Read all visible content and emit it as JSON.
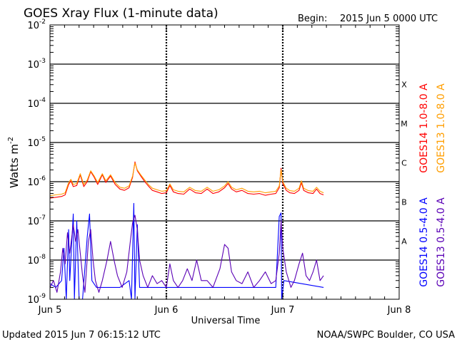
{
  "chart_data": {
    "type": "line",
    "title": "GOES Xray Flux (1-minute data)",
    "begin_label": "Begin:",
    "begin_value": "2015 Jun 5 0000 UTC",
    "ylabel_base": "Watts m",
    "ylabel_exp": "-2",
    "xlabel": "Universal Time",
    "y_scale": "log",
    "ylim": [
      1e-09,
      0.01
    ],
    "y_ticks": [
      {
        "value": 0.01,
        "base": "10",
        "exp": "-2"
      },
      {
        "value": 0.001,
        "base": "10",
        "exp": "-3"
      },
      {
        "value": 0.0001,
        "base": "10",
        "exp": "-4"
      },
      {
        "value": 1e-05,
        "base": "10",
        "exp": "-5"
      },
      {
        "value": 1e-06,
        "base": "10",
        "exp": "-6"
      },
      {
        "value": 1e-07,
        "base": "10",
        "exp": "-7"
      },
      {
        "value": 1e-08,
        "base": "10",
        "exp": "-8"
      },
      {
        "value": 1e-09,
        "base": "10",
        "exp": "-9"
      }
    ],
    "xlim_days": [
      0,
      3
    ],
    "x_ticks": [
      {
        "day": 0,
        "label": "Jun 5"
      },
      {
        "day": 1,
        "label": "Jun 6"
      },
      {
        "day": 2,
        "label": "Jun 7"
      },
      {
        "day": 3,
        "label": "Jun 8"
      }
    ],
    "flare_classes": [
      {
        "label": "X",
        "low": 0.0001,
        "high": 0.001
      },
      {
        "label": "M",
        "low": 1e-05,
        "high": 0.0001
      },
      {
        "label": "C",
        "low": 1e-06,
        "high": 1e-05
      },
      {
        "label": "B",
        "low": 1e-07,
        "high": 1e-06
      },
      {
        "label": "A",
        "low": 1e-08,
        "high": 1e-07
      }
    ],
    "grid": true,
    "series": [
      {
        "name": "GOES14 1.0-8.0 A",
        "color": "#ff0000",
        "points": [
          [
            0.0,
            3.8e-07
          ],
          [
            0.05,
            4e-07
          ],
          [
            0.1,
            4.2e-07
          ],
          [
            0.13,
            4.6e-07
          ],
          [
            0.16,
            8.5e-07
          ],
          [
            0.18,
            1.05e-06
          ],
          [
            0.2,
            7.5e-07
          ],
          [
            0.23,
            8e-07
          ],
          [
            0.26,
            1.5e-06
          ],
          [
            0.29,
            7.5e-07
          ],
          [
            0.32,
            1e-06
          ],
          [
            0.35,
            1.8e-06
          ],
          [
            0.38,
            1.3e-06
          ],
          [
            0.41,
            8.5e-07
          ],
          [
            0.45,
            1.5e-06
          ],
          [
            0.48,
            9.5e-07
          ],
          [
            0.52,
            1.4e-06
          ],
          [
            0.56,
            8.5e-07
          ],
          [
            0.6,
            6.5e-07
          ],
          [
            0.64,
            6e-07
          ],
          [
            0.68,
            7e-07
          ],
          [
            0.71,
            1.3e-06
          ],
          [
            0.73,
            3.2e-06
          ],
          [
            0.75,
            1.9e-06
          ],
          [
            0.78,
            1.4e-06
          ],
          [
            0.82,
            9.5e-07
          ],
          [
            0.85,
            7.5e-07
          ],
          [
            0.88,
            6e-07
          ],
          [
            0.92,
            5.5e-07
          ],
          [
            0.96,
            5e-07
          ],
          [
            1.0,
            5.2e-07
          ],
          [
            1.03,
            8e-07
          ],
          [
            1.06,
            5.5e-07
          ],
          [
            1.1,
            5e-07
          ],
          [
            1.15,
            4.8e-07
          ],
          [
            1.2,
            6.5e-07
          ],
          [
            1.25,
            5.2e-07
          ],
          [
            1.3,
            5e-07
          ],
          [
            1.35,
            6.5e-07
          ],
          [
            1.4,
            5e-07
          ],
          [
            1.45,
            5.5e-07
          ],
          [
            1.5,
            7e-07
          ],
          [
            1.53,
            9e-07
          ],
          [
            1.56,
            6.5e-07
          ],
          [
            1.6,
            5.5e-07
          ],
          [
            1.65,
            6e-07
          ],
          [
            1.7,
            5e-07
          ],
          [
            1.75,
            4.8e-07
          ],
          [
            1.8,
            5e-07
          ],
          [
            1.85,
            4.5e-07
          ],
          [
            1.9,
            4.8e-07
          ],
          [
            1.94,
            5e-07
          ],
          [
            1.97,
            7e-07
          ],
          [
            1.985,
            2.2e-06
          ],
          [
            2.0,
            9e-07
          ],
          [
            2.03,
            6e-07
          ],
          [
            2.06,
            5.2e-07
          ],
          [
            2.1,
            5e-07
          ],
          [
            2.14,
            6e-07
          ],
          [
            2.16,
            9.5e-07
          ],
          [
            2.18,
            6e-07
          ],
          [
            2.22,
            5.2e-07
          ],
          [
            2.26,
            5e-07
          ],
          [
            2.29,
            6.5e-07
          ],
          [
            2.32,
            5e-07
          ],
          [
            2.35,
            4.6e-07
          ]
        ]
      },
      {
        "name": "GOES13 1.0-8.0 A",
        "color": "#ff9e00",
        "points": [
          [
            0.0,
            4.4e-07
          ],
          [
            0.05,
            4.6e-07
          ],
          [
            0.1,
            4.8e-07
          ],
          [
            0.13,
            5.2e-07
          ],
          [
            0.16,
            9.5e-07
          ],
          [
            0.18,
            1.15e-06
          ],
          [
            0.2,
            8.5e-07
          ],
          [
            0.23,
            9e-07
          ],
          [
            0.26,
            1.6e-06
          ],
          [
            0.29,
            8.5e-07
          ],
          [
            0.32,
            1.1e-06
          ],
          [
            0.35,
            1.9e-06
          ],
          [
            0.38,
            1.4e-06
          ],
          [
            0.41,
            9.5e-07
          ],
          [
            0.45,
            1.6e-06
          ],
          [
            0.48,
            1.05e-06
          ],
          [
            0.52,
            1.5e-06
          ],
          [
            0.56,
            9.5e-07
          ],
          [
            0.6,
            7.2e-07
          ],
          [
            0.64,
            6.8e-07
          ],
          [
            0.68,
            7.8e-07
          ],
          [
            0.71,
            1.4e-06
          ],
          [
            0.73,
            3e-06
          ],
          [
            0.75,
            2e-06
          ],
          [
            0.78,
            1.5e-06
          ],
          [
            0.82,
            1.05e-06
          ],
          [
            0.85,
            8.2e-07
          ],
          [
            0.88,
            6.8e-07
          ],
          [
            0.92,
            6.2e-07
          ],
          [
            0.96,
            5.7e-07
          ],
          [
            1.0,
            5.9e-07
          ],
          [
            1.03,
            8.8e-07
          ],
          [
            1.06,
            6.2e-07
          ],
          [
            1.1,
            5.7e-07
          ],
          [
            1.15,
            5.5e-07
          ],
          [
            1.2,
            7.2e-07
          ],
          [
            1.25,
            5.9e-07
          ],
          [
            1.3,
            5.7e-07
          ],
          [
            1.35,
            7.2e-07
          ],
          [
            1.4,
            5.7e-07
          ],
          [
            1.45,
            6.2e-07
          ],
          [
            1.5,
            7.8e-07
          ],
          [
            1.53,
            1e-06
          ],
          [
            1.56,
            7.2e-07
          ],
          [
            1.6,
            6.2e-07
          ],
          [
            1.65,
            6.8e-07
          ],
          [
            1.7,
            5.7e-07
          ],
          [
            1.75,
            5.5e-07
          ],
          [
            1.8,
            5.7e-07
          ],
          [
            1.85,
            5.2e-07
          ],
          [
            1.9,
            5.5e-07
          ],
          [
            1.94,
            5.7e-07
          ],
          [
            1.97,
            7.8e-07
          ],
          [
            1.985,
            2e-06
          ],
          [
            2.0,
            1e-06
          ],
          [
            2.03,
            6.8e-07
          ],
          [
            2.06,
            5.9e-07
          ],
          [
            2.1,
            5.7e-07
          ],
          [
            2.14,
            6.8e-07
          ],
          [
            2.16,
            1.05e-06
          ],
          [
            2.18,
            6.8e-07
          ],
          [
            2.22,
            5.9e-07
          ],
          [
            2.26,
            5.7e-07
          ],
          [
            2.29,
            7.2e-07
          ],
          [
            2.32,
            5.7e-07
          ],
          [
            2.35,
            5.2e-07
          ]
        ]
      },
      {
        "name": "GOES14 0.5-4.0 A",
        "color": "#0000ff",
        "points": [
          [
            0.0,
            2.5e-09
          ],
          [
            0.05,
            2e-09
          ],
          [
            0.1,
            3e-09
          ],
          [
            0.12,
            2e-08
          ],
          [
            0.14,
            1e-09
          ],
          [
            0.16,
            6e-08
          ],
          [
            0.17,
            3e-09
          ],
          [
            0.2,
            1.5e-07
          ],
          [
            0.21,
            1e-09
          ],
          [
            0.23,
            1e-07
          ],
          [
            0.25,
            1e-09
          ],
          [
            0.28,
            1e-09
          ],
          [
            0.32,
            4e-08
          ],
          [
            0.34,
            1.5e-07
          ],
          [
            0.36,
            3e-09
          ],
          [
            0.4,
            2e-09
          ],
          [
            0.5,
            2e-09
          ],
          [
            0.6,
            2e-09
          ],
          [
            0.68,
            3e-09
          ],
          [
            0.7,
            1e-09
          ],
          [
            0.72,
            2.8e-07
          ],
          [
            0.73,
            1e-09
          ],
          [
            0.75,
            8e-08
          ],
          [
            0.77,
            2e-09
          ],
          [
            0.8,
            2e-09
          ],
          [
            1.0,
            2e-09
          ],
          [
            1.5,
            2e-09
          ],
          [
            1.94,
            2e-09
          ],
          [
            1.97,
            1.3e-07
          ],
          [
            1.985,
            1.6e-07
          ],
          [
            1.99,
            1e-09
          ],
          [
            2.01,
            3e-09
          ],
          [
            2.35,
            2e-09
          ]
        ]
      },
      {
        "name": "GOES13 0.5-4.0 A",
        "color": "#5a00b5",
        "points": [
          [
            0.0,
            2e-09
          ],
          [
            0.03,
            3e-09
          ],
          [
            0.06,
            1.5e-09
          ],
          [
            0.09,
            5e-09
          ],
          [
            0.11,
            2e-08
          ],
          [
            0.13,
            8e-09
          ],
          [
            0.15,
            5e-08
          ],
          [
            0.17,
            1.5e-08
          ],
          [
            0.2,
            8e-08
          ],
          [
            0.22,
            3e-08
          ],
          [
            0.24,
            6e-08
          ],
          [
            0.26,
            1.5e-08
          ],
          [
            0.28,
            4e-09
          ],
          [
            0.3,
            1.5e-09
          ],
          [
            0.33,
            3e-08
          ],
          [
            0.35,
            6e-08
          ],
          [
            0.37,
            1e-08
          ],
          [
            0.39,
            3e-09
          ],
          [
            0.42,
            1.5e-09
          ],
          [
            0.45,
            3e-09
          ],
          [
            0.49,
            1e-08
          ],
          [
            0.52,
            3e-08
          ],
          [
            0.55,
            1e-08
          ],
          [
            0.58,
            4e-09
          ],
          [
            0.62,
            2e-09
          ],
          [
            0.66,
            5e-09
          ],
          [
            0.69,
            3e-08
          ],
          [
            0.71,
            9e-08
          ],
          [
            0.73,
            1.4e-07
          ],
          [
            0.75,
            6e-08
          ],
          [
            0.77,
            1e-08
          ],
          [
            0.8,
            4e-09
          ],
          [
            0.84,
            2e-09
          ],
          [
            0.88,
            4e-09
          ],
          [
            0.92,
            2.5e-09
          ],
          [
            0.96,
            3e-09
          ],
          [
            1.0,
            2e-09
          ],
          [
            1.03,
            8e-09
          ],
          [
            1.06,
            3e-09
          ],
          [
            1.1,
            2e-09
          ],
          [
            1.14,
            3e-09
          ],
          [
            1.18,
            6e-09
          ],
          [
            1.22,
            3e-09
          ],
          [
            1.26,
            1e-08
          ],
          [
            1.3,
            3e-09
          ],
          [
            1.35,
            3e-09
          ],
          [
            1.4,
            2e-09
          ],
          [
            1.46,
            6e-09
          ],
          [
            1.5,
            2.5e-08
          ],
          [
            1.53,
            2e-08
          ],
          [
            1.56,
            5e-09
          ],
          [
            1.6,
            3e-09
          ],
          [
            1.65,
            2.5e-09
          ],
          [
            1.7,
            5e-09
          ],
          [
            1.75,
            2e-09
          ],
          [
            1.8,
            3e-09
          ],
          [
            1.85,
            5e-09
          ],
          [
            1.9,
            2.5e-09
          ],
          [
            1.94,
            3e-09
          ],
          [
            1.97,
            1.5e-08
          ],
          [
            1.985,
            1e-07
          ],
          [
            2.0,
            2e-08
          ],
          [
            2.03,
            5e-09
          ],
          [
            2.07,
            2e-09
          ],
          [
            2.1,
            3e-09
          ],
          [
            2.14,
            8e-09
          ],
          [
            2.17,
            1.5e-08
          ],
          [
            2.2,
            4e-09
          ],
          [
            2.23,
            3e-09
          ],
          [
            2.26,
            5e-09
          ],
          [
            2.29,
            1e-08
          ],
          [
            2.32,
            3e-09
          ],
          [
            2.35,
            4e-09
          ]
        ]
      }
    ]
  },
  "footer": {
    "updated": "Updated 2015 Jun  7 06:15:12 UTC",
    "credit": "NOAA/SWPC Boulder, CO USA"
  }
}
